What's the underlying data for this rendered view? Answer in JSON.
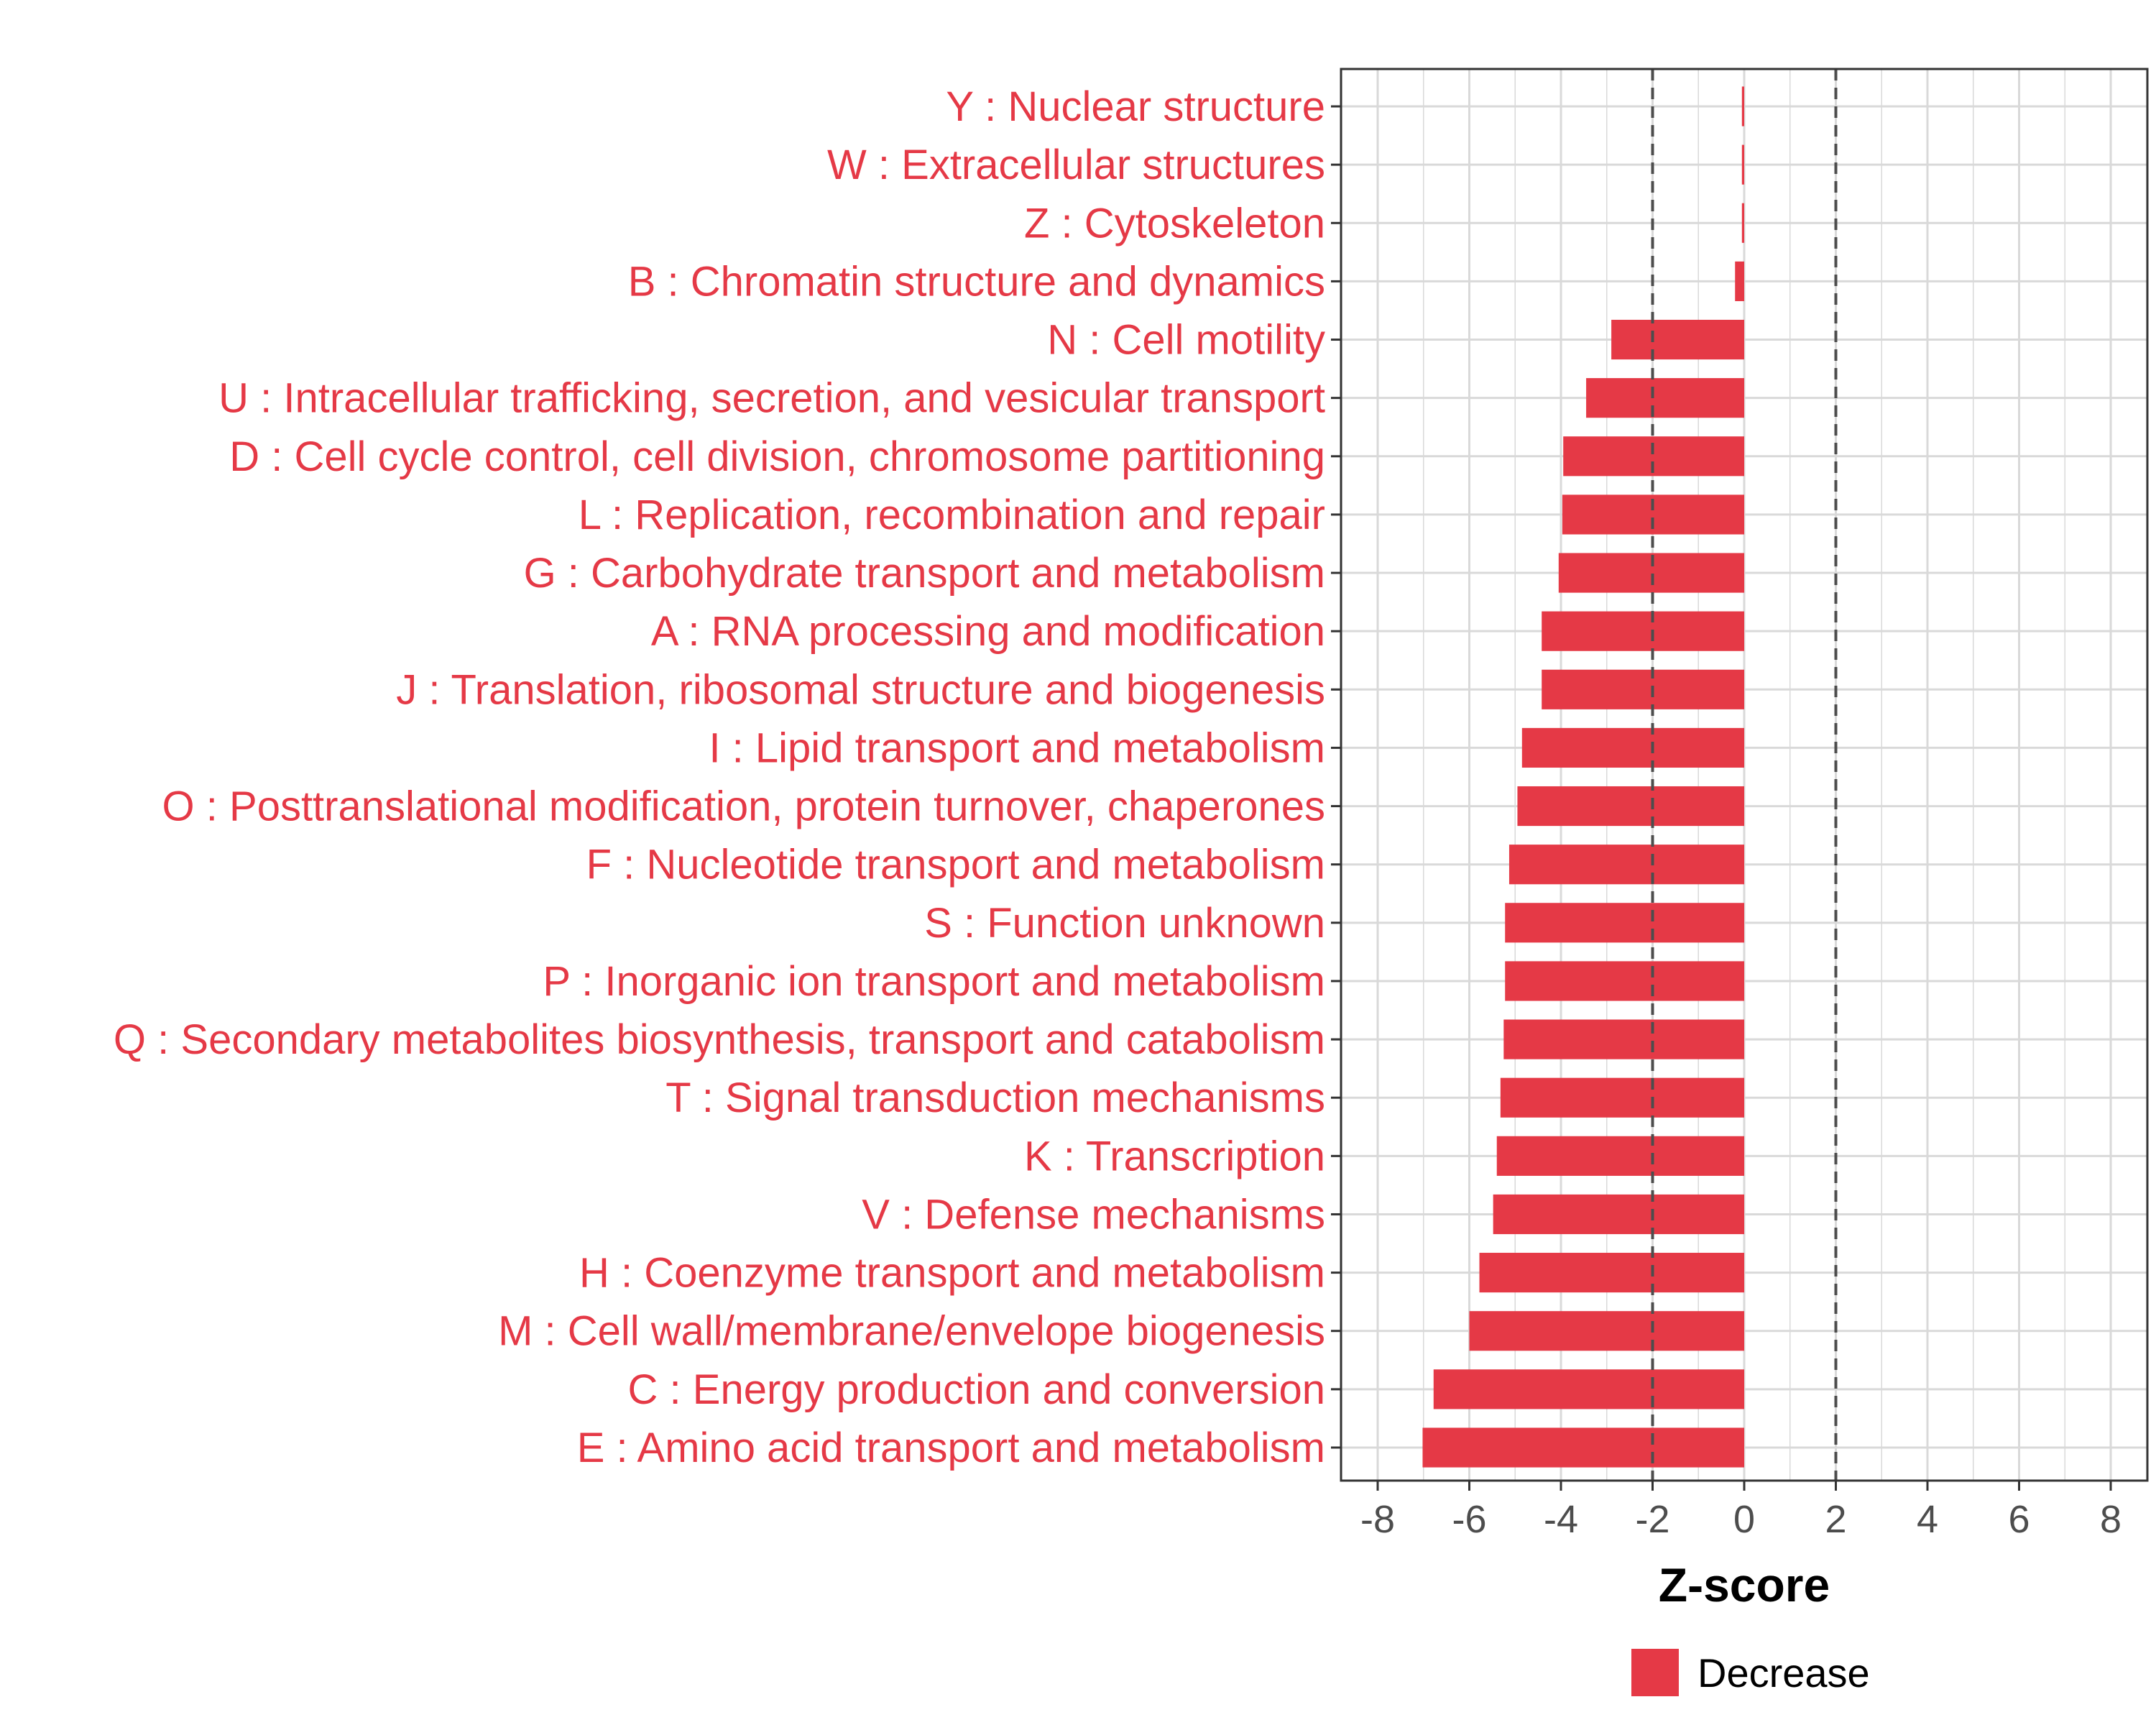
{
  "chart_data": {
    "type": "bar",
    "orientation": "horizontal",
    "title": "",
    "xlabel": "Z-score",
    "ylabel": "",
    "xlim": [
      -8.8,
      8.8
    ],
    "x_ticks": [
      -8,
      -6,
      -4,
      -2,
      0,
      2,
      4,
      6,
      8
    ],
    "x_tick_labels": [
      "-8",
      "-6",
      "-4",
      "-2",
      "0",
      "2",
      "4",
      "6",
      "8"
    ],
    "reference_lines": [
      -2,
      2
    ],
    "grid": true,
    "categories": [
      "Y : Nuclear structure",
      "W : Extracellular structures",
      "Z : Cytoskeleton",
      "B : Chromatin structure and dynamics",
      "N : Cell motility",
      "U : Intracellular trafficking, secretion, and vesicular transport",
      "D : Cell cycle control, cell division, chromosome partitioning",
      "L : Replication, recombination and repair",
      "G : Carbohydrate transport and metabolism",
      "A : RNA processing and modification",
      "J : Translation, ribosomal structure and biogenesis",
      "I : Lipid transport and metabolism",
      "O : Posttranslational modification, protein turnover, chaperones",
      "F : Nucleotide transport and metabolism",
      "S : Function unknown",
      "P : Inorganic ion transport and metabolism",
      "Q : Secondary metabolites biosynthesis, transport and catabolism",
      "T : Signal transduction mechanisms",
      "K : Transcription",
      "V : Defense mechanisms",
      "H : Coenzyme transport and metabolism",
      "M : Cell wall/membrane/envelope biogenesis",
      "C : Energy production and conversion",
      "E : Amino acid transport and metabolism"
    ],
    "values": [
      -0.05,
      -0.05,
      -0.05,
      -0.2,
      -2.9,
      -3.45,
      -3.95,
      -3.97,
      -4.05,
      -4.42,
      -4.42,
      -4.85,
      -4.95,
      -5.13,
      -5.22,
      -5.22,
      -5.25,
      -5.32,
      -5.4,
      -5.48,
      -5.78,
      -6.0,
      -6.78,
      -7.02
    ],
    "series": [
      {
        "name": "Decrease",
        "color": "#e53946"
      }
    ],
    "legend": {
      "position": "bottom",
      "entries": [
        "Decrease"
      ]
    }
  },
  "colors": {
    "bar": "#e53946",
    "label": "#e53946",
    "grid": "#d9d9d9",
    "reference_line": "#4d4d4d",
    "panel_border": "#333333"
  }
}
